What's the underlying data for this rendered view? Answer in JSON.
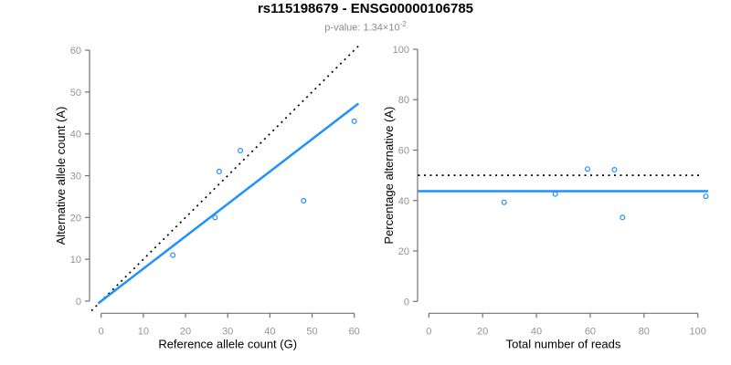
{
  "header": {
    "title": "rs115198679 - ENSG00000106785",
    "pvalue_label": "p-value: 1.34×10",
    "pvalue_exponent": "-2"
  },
  "colors": {
    "accent_blue": "#1E90FF",
    "reference_black": "#000000",
    "axis_gray": "#737373",
    "tick_label_gray": "#949494",
    "subtitle_gray": "#8a8a8a",
    "background": "#ffffff"
  },
  "chart_data": [
    {
      "type": "scatter",
      "name": "allele-counts",
      "xlabel": "Reference allele count (G)",
      "ylabel": "Alternative allele count (A)",
      "xlim": [
        0,
        60
      ],
      "ylim": [
        0,
        60
      ],
      "xticks": [
        0,
        10,
        20,
        30,
        40,
        50,
        60
      ],
      "yticks": [
        0,
        10,
        20,
        30,
        40,
        50,
        60
      ],
      "point_color": "#1E90FF",
      "points": [
        [
          17,
          11
        ],
        [
          27,
          20
        ],
        [
          28,
          31
        ],
        [
          33,
          36
        ],
        [
          48,
          24
        ],
        [
          60,
          43
        ]
      ],
      "lines": [
        {
          "name": "identity",
          "style": "dotted",
          "color": "#000000",
          "x1": -2.3,
          "y1": -2.3,
          "x2": 61.3,
          "y2": 61.3
        },
        {
          "name": "fit",
          "style": "solid",
          "color": "#1E90FF",
          "x1": -0.7,
          "y1": -0.54,
          "x2": 61.0,
          "y2": 47.25
        }
      ]
    },
    {
      "type": "scatter",
      "name": "percentage-alternative",
      "xlabel": "Total number of reads",
      "ylabel": "Percentage alternative (A)",
      "xlim": [
        0,
        100
      ],
      "ylim": [
        0,
        100
      ],
      "xticks": [
        0,
        20,
        40,
        60,
        80,
        100
      ],
      "yticks": [
        0,
        20,
        40,
        60,
        80,
        100
      ],
      "point_color": "#1E90FF",
      "points": [
        [
          28,
          39.3
        ],
        [
          47,
          42.6
        ],
        [
          59,
          52.5
        ],
        [
          69,
          52.2
        ],
        [
          72,
          33.3
        ],
        [
          103,
          41.7
        ]
      ],
      "lines": [
        {
          "name": "expected-ratio",
          "style": "dotted",
          "color": "#000000",
          "x1": -4,
          "y1": 50,
          "x2": 101.5,
          "y2": 50
        },
        {
          "name": "observed-mean",
          "style": "solid",
          "color": "#1E90FF",
          "x1": -4,
          "y1": 43.7,
          "x2": 103.8,
          "y2": 43.7
        }
      ]
    }
  ]
}
